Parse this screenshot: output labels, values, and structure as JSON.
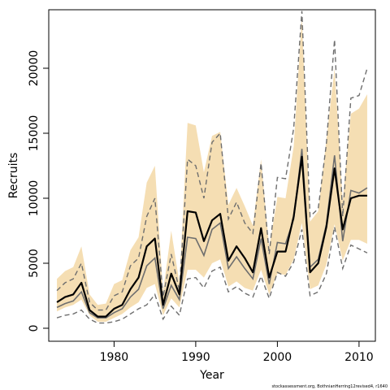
{
  "chart_data": {
    "type": "line",
    "title": "",
    "xlabel": "Year",
    "ylabel": "Recruits",
    "xlim": [
      1972,
      2012
    ],
    "ylim": [
      -1000,
      24500
    ],
    "x_ticks": [
      1980,
      1990,
      2000,
      2010
    ],
    "y_ticks": [
      0,
      5000,
      10000,
      15000,
      20000
    ],
    "grid": false,
    "legend": "none",
    "colors": {
      "band": "#f5deb3",
      "main_line": "#000000",
      "grey_line": "#6e6e6e",
      "dashed_line": "#6e6e6e"
    },
    "x": [
      1973,
      1974,
      1975,
      1976,
      1977,
      1978,
      1979,
      1980,
      1981,
      1982,
      1983,
      1984,
      1985,
      1986,
      1987,
      1988,
      1989,
      1990,
      1991,
      1992,
      1993,
      1994,
      1995,
      1996,
      1997,
      1998,
      1999,
      2000,
      2001,
      2002,
      2003,
      2004,
      2005,
      2006,
      2007,
      2008,
      2009,
      2010,
      2011
    ],
    "series": [
      {
        "role": "band_lower",
        "values": [
          1300,
          1600,
          1800,
          2200,
          1000,
          500,
          500,
          800,
          1100,
          1600,
          2000,
          3100,
          3400,
          1000,
          2300,
          1600,
          4500,
          4500,
          3900,
          5000,
          5300,
          3200,
          3600,
          3100,
          2900,
          4500,
          2600,
          4200,
          4100,
          5300,
          8100,
          3000,
          3300,
          4900,
          8000,
          5200,
          6800,
          6800,
          6500
        ]
      },
      {
        "role": "band_upper",
        "values": [
          3800,
          4400,
          4700,
          6300,
          2600,
          1800,
          1900,
          3400,
          3700,
          6000,
          7000,
          11200,
          12500,
          2800,
          7500,
          3500,
          15800,
          15600,
          12000,
          14800,
          15100,
          9500,
          10800,
          9400,
          7900,
          13000,
          6200,
          10100,
          10000,
          14000,
          24000,
          8200,
          9000,
          14500,
          20000,
          9800,
          16500,
          16900,
          18000
        ]
      },
      {
        "role": "main",
        "values": [
          2000,
          2400,
          2600,
          3500,
          1400,
          900,
          900,
          1500,
          1800,
          3000,
          3900,
          6300,
          6900,
          1800,
          4200,
          2600,
          9000,
          8900,
          6700,
          8300,
          8800,
          5200,
          6300,
          5400,
          4300,
          7700,
          3900,
          5900,
          5900,
          8600,
          13200,
          4300,
          5000,
          7800,
          12300,
          7600,
          10000,
          10200,
          10200
        ]
      },
      {
        "role": "grey",
        "values": [
          1600,
          1900,
          2100,
          2800,
          1200,
          800,
          800,
          1200,
          1500,
          2400,
          3000,
          4800,
          5400,
          1500,
          3300,
          2200,
          7000,
          6900,
          5600,
          7600,
          8100,
          4600,
          5500,
          4600,
          3800,
          6900,
          3400,
          6600,
          6500,
          8400,
          13800,
          4700,
          5300,
          8000,
          13300,
          6700,
          10600,
          10400,
          10800
        ]
      },
      {
        "role": "dashed_lower",
        "values": [
          800,
          1000,
          1100,
          1400,
          700,
          400,
          400,
          500,
          700,
          1100,
          1500,
          1800,
          2600,
          700,
          1700,
          1000,
          3800,
          3900,
          3100,
          4400,
          4700,
          2800,
          3200,
          2700,
          2400,
          4000,
          2300,
          4300,
          4000,
          5100,
          7600,
          2500,
          2800,
          4200,
          7800,
          4600,
          6400,
          6100,
          5800
        ]
      },
      {
        "role": "dashed_upper",
        "values": [
          2900,
          3500,
          3800,
          5000,
          2000,
          1400,
          1400,
          2500,
          2800,
          4800,
          5400,
          8600,
          10000,
          2400,
          5700,
          2900,
          13000,
          12500,
          10000,
          14300,
          15000,
          8400,
          9700,
          8100,
          7300,
          12700,
          5700,
          11600,
          11500,
          15400,
          24400,
          8600,
          9200,
          14200,
          22200,
          8600,
          17700,
          17900,
          20000
        ]
      }
    ],
    "footnote": "stockassessment.org, BothnianHerring12revised4, r1640"
  }
}
